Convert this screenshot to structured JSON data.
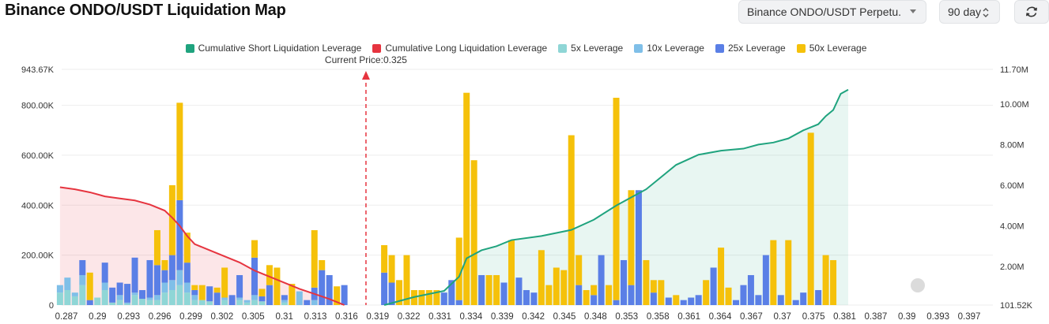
{
  "header": {
    "title": "Binance ONDO/USDT Liquidation Map",
    "pair_select": "Binance ONDO/USDT Perpetu...",
    "range_select": "90 day"
  },
  "colors": {
    "short": "#1fa37e",
    "long": "#e6343f",
    "lev5": "#8fd6d6",
    "lev10": "#7fbfe8",
    "lev25": "#5a7fe6",
    "lev50": "#f5c10a"
  },
  "chart_data": {
    "type": "bar",
    "title": "",
    "current_price_label": "Current Price:0.325",
    "current_price": 0.325,
    "legend": [
      {
        "name": "Cumulative Short Liquidation Leverage",
        "color": "#1fa37e"
      },
      {
        "name": "Cumulative Long Liquidation Leverage",
        "color": "#e6343f"
      },
      {
        "name": "5x Leverage",
        "color": "#8fd6d6"
      },
      {
        "name": "10x Leverage",
        "color": "#7fbfe8"
      },
      {
        "name": "25x Leverage",
        "color": "#5a7fe6"
      },
      {
        "name": "50x Leverage",
        "color": "#f5c10a"
      }
    ],
    "y_left": {
      "min": 0,
      "max": 943670,
      "ticks": [
        {
          "v": 0,
          "label": "0"
        },
        {
          "v": 200000,
          "label": "200.00K"
        },
        {
          "v": 400000,
          "label": "400.00K"
        },
        {
          "v": 600000,
          "label": "600.00K"
        },
        {
          "v": 800000,
          "label": "800.00K"
        },
        {
          "v": 943670,
          "label": "943.67K"
        }
      ]
    },
    "y_right": {
      "min": 101520,
      "max": 11700000,
      "ticks": [
        {
          "v": 101520,
          "label": "101.52K"
        },
        {
          "v": 2000000,
          "label": "2.00M"
        },
        {
          "v": 4000000,
          "label": "4.00M"
        },
        {
          "v": 6000000,
          "label": "6.00M"
        },
        {
          "v": 8000000,
          "label": "8.00M"
        },
        {
          "v": 10000000,
          "label": "10.00M"
        },
        {
          "v": 11700000,
          "label": "11.70M"
        }
      ]
    },
    "x_tick_labels": [
      "0.287",
      "0.29",
      "0.293",
      "0.296",
      "0.299",
      "0.302",
      "0.305",
      "0.31",
      "0.313",
      "0.316",
      "0.319",
      "0.322",
      "0.331",
      "0.334",
      "0.339",
      "0.342",
      "0.345",
      "0.348",
      "0.353",
      "0.358",
      "0.361",
      "0.364",
      "0.367",
      "0.37",
      "0.375",
      "0.381",
      "0.387",
      "0.39",
      "0.393",
      "0.397"
    ],
    "x_range": [
      0.287,
      0.399
    ],
    "bars": {
      "long_side": [
        {
          "x": 0.2868,
          "a": 50000,
          "b": 30000,
          "c": 0,
          "d": 0
        },
        {
          "x": 0.2877,
          "a": 60000,
          "b": 50000,
          "c": 0,
          "d": 0
        },
        {
          "x": 0.2886,
          "a": 35000,
          "b": 15000,
          "c": 0,
          "d": 0
        },
        {
          "x": 0.2895,
          "a": 80000,
          "b": 40000,
          "c": 60000,
          "d": 0
        },
        {
          "x": 0.2904,
          "a": 0,
          "b": 0,
          "c": 20000,
          "d": 110000
        },
        {
          "x": 0.2913,
          "a": 30000,
          "b": 0,
          "c": 0,
          "d": 0
        },
        {
          "x": 0.2922,
          "a": 60000,
          "b": 30000,
          "c": 80000,
          "d": 0
        },
        {
          "x": 0.2931,
          "a": 10000,
          "b": 0,
          "c": 60000,
          "d": 0
        },
        {
          "x": 0.294,
          "a": 20000,
          "b": 20000,
          "c": 50000,
          "d": 0
        },
        {
          "x": 0.2949,
          "a": 5000,
          "b": 5000,
          "c": 75000,
          "d": 0
        },
        {
          "x": 0.2958,
          "a": 40000,
          "b": 10000,
          "c": 140000,
          "d": 0
        },
        {
          "x": 0.2967,
          "a": 25000,
          "b": 0,
          "c": 35000,
          "d": 0
        },
        {
          "x": 0.2976,
          "a": 20000,
          "b": 10000,
          "c": 150000,
          "d": 0
        },
        {
          "x": 0.2985,
          "a": 20000,
          "b": 20000,
          "c": 120000,
          "d": 140000
        },
        {
          "x": 0.2994,
          "a": 50000,
          "b": 40000,
          "c": 50000,
          "d": 40000
        },
        {
          "x": 0.3003,
          "a": 60000,
          "b": 40000,
          "c": 100000,
          "d": 280000
        },
        {
          "x": 0.3012,
          "a": 80000,
          "b": 60000,
          "c": 280000,
          "d": 390000
        },
        {
          "x": 0.3021,
          "a": 50000,
          "b": 40000,
          "c": 80000,
          "d": 120000
        },
        {
          "x": 0.303,
          "a": 20000,
          "b": 20000,
          "c": 20000,
          "d": 20000
        },
        {
          "x": 0.3039,
          "a": 20000,
          "b": 0,
          "c": 0,
          "d": 60000
        },
        {
          "x": 0.3048,
          "a": 15000,
          "b": 0,
          "c": 60000,
          "d": 0
        },
        {
          "x": 0.3057,
          "a": 0,
          "b": 0,
          "c": 50000,
          "d": 20000
        },
        {
          "x": 0.3066,
          "a": 20000,
          "b": 10000,
          "c": 0,
          "d": 120000
        },
        {
          "x": 0.3075,
          "a": 0,
          "b": 0,
          "c": 40000,
          "d": 0
        },
        {
          "x": 0.3084,
          "a": 20000,
          "b": 10000,
          "c": 90000,
          "d": 0
        },
        {
          "x": 0.3093,
          "a": 10000,
          "b": 10000,
          "c": 0,
          "d": 0
        },
        {
          "x": 0.3102,
          "a": 20000,
          "b": 20000,
          "c": 150000,
          "d": 70000
        },
        {
          "x": 0.3111,
          "a": 15000,
          "b": 0,
          "c": 20000,
          "d": 30000
        },
        {
          "x": 0.312,
          "a": 0,
          "b": 0,
          "c": 80000,
          "d": 80000
        },
        {
          "x": 0.3129,
          "a": 0,
          "b": 0,
          "c": 0,
          "d": 150000
        },
        {
          "x": 0.3138,
          "a": 10000,
          "b": 10000,
          "c": 20000,
          "d": 0
        },
        {
          "x": 0.3147,
          "a": 0,
          "b": 0,
          "c": 0,
          "d": 85000
        },
        {
          "x": 0.3156,
          "a": 0,
          "b": 55000,
          "c": 0,
          "d": 0
        },
        {
          "x": 0.3165,
          "a": 0,
          "b": 0,
          "c": 20000,
          "d": 0
        },
        {
          "x": 0.3174,
          "a": 0,
          "b": 20000,
          "c": 50000,
          "d": 230000
        },
        {
          "x": 0.3183,
          "a": 0,
          "b": 0,
          "c": 140000,
          "d": 40000
        },
        {
          "x": 0.3192,
          "a": 0,
          "b": 0,
          "c": 120000,
          "d": 0
        },
        {
          "x": 0.3201,
          "a": 0,
          "b": 0,
          "c": 0,
          "d": 75000
        },
        {
          "x": 0.321,
          "a": 0,
          "b": 0,
          "c": 80000,
          "d": 0
        }
      ],
      "short_side": [
        {
          "x": 0.3258,
          "a": 0,
          "b": 0,
          "c": 130000,
          "d": 110000
        },
        {
          "x": 0.3267,
          "a": 0,
          "b": 0,
          "c": 90000,
          "d": 110000
        },
        {
          "x": 0.3276,
          "a": 0,
          "b": 0,
          "c": 0,
          "d": 100000
        },
        {
          "x": 0.3285,
          "a": 0,
          "b": 0,
          "c": 0,
          "d": 200000
        },
        {
          "x": 0.3294,
          "a": 0,
          "b": 0,
          "c": 0,
          "d": 60000
        },
        {
          "x": 0.3303,
          "a": 0,
          "b": 0,
          "c": 0,
          "d": 60000
        },
        {
          "x": 0.3312,
          "a": 0,
          "b": 0,
          "c": 0,
          "d": 60000
        },
        {
          "x": 0.3321,
          "a": 0,
          "b": 0,
          "c": 0,
          "d": 60000
        },
        {
          "x": 0.333,
          "a": 0,
          "b": 0,
          "c": 50000,
          "d": 0
        },
        {
          "x": 0.3339,
          "a": 0,
          "b": 0,
          "c": 100000,
          "d": 0
        },
        {
          "x": 0.3348,
          "a": 0,
          "b": 0,
          "c": 20000,
          "d": 250000
        },
        {
          "x": 0.3357,
          "a": 0,
          "b": 0,
          "c": 0,
          "d": 850000
        },
        {
          "x": 0.3366,
          "a": 0,
          "b": 0,
          "c": 0,
          "d": 580000
        },
        {
          "x": 0.3375,
          "a": 0,
          "b": 0,
          "c": 120000,
          "d": 0
        },
        {
          "x": 0.3384,
          "a": 0,
          "b": 0,
          "c": 0,
          "d": 120000
        },
        {
          "x": 0.3393,
          "a": 0,
          "b": 0,
          "c": 0,
          "d": 120000
        },
        {
          "x": 0.3402,
          "a": 0,
          "b": 0,
          "c": 90000,
          "d": 0
        },
        {
          "x": 0.3411,
          "a": 0,
          "b": 0,
          "c": 0,
          "d": 260000
        },
        {
          "x": 0.342,
          "a": 0,
          "b": 0,
          "c": 110000,
          "d": 0
        },
        {
          "x": 0.3429,
          "a": 0,
          "b": 0,
          "c": 60000,
          "d": 0
        },
        {
          "x": 0.3438,
          "a": 0,
          "b": 0,
          "c": 50000,
          "d": 0
        },
        {
          "x": 0.3447,
          "a": 0,
          "b": 0,
          "c": 0,
          "d": 220000
        },
        {
          "x": 0.3456,
          "a": 0,
          "b": 0,
          "c": 0,
          "d": 80000
        },
        {
          "x": 0.3465,
          "a": 0,
          "b": 0,
          "c": 0,
          "d": 150000
        },
        {
          "x": 0.3474,
          "a": 0,
          "b": 0,
          "c": 0,
          "d": 140000
        },
        {
          "x": 0.3483,
          "a": 0,
          "b": 0,
          "c": 0,
          "d": 680000
        },
        {
          "x": 0.3492,
          "a": 0,
          "b": 0,
          "c": 80000,
          "d": 120000
        },
        {
          "x": 0.3501,
          "a": 0,
          "b": 0,
          "c": 0,
          "d": 60000
        },
        {
          "x": 0.351,
          "a": 0,
          "b": 0,
          "c": 40000,
          "d": 40000
        },
        {
          "x": 0.3519,
          "a": 0,
          "b": 0,
          "c": 200000,
          "d": 0
        },
        {
          "x": 0.3528,
          "a": 0,
          "b": 0,
          "c": 0,
          "d": 80000
        },
        {
          "x": 0.3537,
          "a": 0,
          "b": 0,
          "c": 20000,
          "d": 810000
        },
        {
          "x": 0.3546,
          "a": 0,
          "b": 0,
          "c": 180000,
          "d": 0
        },
        {
          "x": 0.3555,
          "a": 0,
          "b": 0,
          "c": 80000,
          "d": 380000
        },
        {
          "x": 0.3564,
          "a": 0,
          "b": 0,
          "c": 460000,
          "d": 0
        },
        {
          "x": 0.3573,
          "a": 0,
          "b": 0,
          "c": 0,
          "d": 180000
        },
        {
          "x": 0.3582,
          "a": 0,
          "b": 0,
          "c": 50000,
          "d": 50000
        },
        {
          "x": 0.3591,
          "a": 0,
          "b": 0,
          "c": 0,
          "d": 100000
        },
        {
          "x": 0.36,
          "a": 0,
          "b": 0,
          "c": 30000,
          "d": 0
        },
        {
          "x": 0.3609,
          "a": 0,
          "b": 0,
          "c": 0,
          "d": 40000
        },
        {
          "x": 0.3618,
          "a": 0,
          "b": 0,
          "c": 20000,
          "d": 0
        },
        {
          "x": 0.3627,
          "a": 0,
          "b": 0,
          "c": 30000,
          "d": 0
        },
        {
          "x": 0.3636,
          "a": 0,
          "b": 0,
          "c": 40000,
          "d": 0
        },
        {
          "x": 0.3645,
          "a": 0,
          "b": 0,
          "c": 0,
          "d": 100000
        },
        {
          "x": 0.3654,
          "a": 0,
          "b": 0,
          "c": 150000,
          "d": 0
        },
        {
          "x": 0.3663,
          "a": 0,
          "b": 0,
          "c": 0,
          "d": 230000
        },
        {
          "x": 0.3672,
          "a": 0,
          "b": 0,
          "c": 0,
          "d": 70000
        },
        {
          "x": 0.3681,
          "a": 0,
          "b": 0,
          "c": 20000,
          "d": 0
        },
        {
          "x": 0.369,
          "a": 0,
          "b": 0,
          "c": 80000,
          "d": 0
        },
        {
          "x": 0.3699,
          "a": 0,
          "b": 0,
          "c": 120000,
          "d": 0
        },
        {
          "x": 0.3708,
          "a": 0,
          "b": 0,
          "c": 40000,
          "d": 0
        },
        {
          "x": 0.3717,
          "a": 0,
          "b": 0,
          "c": 200000,
          "d": 0
        },
        {
          "x": 0.3726,
          "a": 0,
          "b": 0,
          "c": 0,
          "d": 260000
        },
        {
          "x": 0.3735,
          "a": 0,
          "b": 0,
          "c": 40000,
          "d": 0
        },
        {
          "x": 0.3744,
          "a": 0,
          "b": 0,
          "c": 0,
          "d": 260000
        },
        {
          "x": 0.3753,
          "a": 0,
          "b": 0,
          "c": 20000,
          "d": 0
        },
        {
          "x": 0.3762,
          "a": 0,
          "b": 0,
          "c": 50000,
          "d": 0
        },
        {
          "x": 0.3771,
          "a": 0,
          "b": 0,
          "c": 0,
          "d": 690000
        },
        {
          "x": 0.378,
          "a": 0,
          "b": 0,
          "c": 60000,
          "d": 0
        },
        {
          "x": 0.3789,
          "a": 0,
          "b": 0,
          "c": 0,
          "d": 200000
        },
        {
          "x": 0.3798,
          "a": 0,
          "b": 0,
          "c": 0,
          "d": 180000
        }
      ]
    },
    "cumulative_long": [
      [
        0.2868,
        5900000
      ],
      [
        0.2886,
        5800000
      ],
      [
        0.2904,
        5650000
      ],
      [
        0.2922,
        5450000
      ],
      [
        0.294,
        5350000
      ],
      [
        0.2958,
        5250000
      ],
      [
        0.2976,
        5050000
      ],
      [
        0.2994,
        4750000
      ],
      [
        0.3003,
        4400000
      ],
      [
        0.3012,
        4000000
      ],
      [
        0.3021,
        3500000
      ],
      [
        0.303,
        3100000
      ],
      [
        0.3048,
        2800000
      ],
      [
        0.3066,
        2500000
      ],
      [
        0.3084,
        2200000
      ],
      [
        0.3102,
        1800000
      ],
      [
        0.312,
        1500000
      ],
      [
        0.3138,
        1200000
      ],
      [
        0.3156,
        900000
      ],
      [
        0.3174,
        650000
      ],
      [
        0.3192,
        400000
      ],
      [
        0.321,
        101520
      ]
    ],
    "cumulative_short": [
      [
        0.3258,
        101520
      ],
      [
        0.3276,
        300000
      ],
      [
        0.3294,
        500000
      ],
      [
        0.3312,
        650000
      ],
      [
        0.333,
        800000
      ],
      [
        0.3348,
        1500000
      ],
      [
        0.3357,
        2400000
      ],
      [
        0.3375,
        2800000
      ],
      [
        0.3393,
        3000000
      ],
      [
        0.3411,
        3300000
      ],
      [
        0.3447,
        3500000
      ],
      [
        0.3483,
        3800000
      ],
      [
        0.351,
        4300000
      ],
      [
        0.3537,
        5000000
      ],
      [
        0.3555,
        5400000
      ],
      [
        0.3573,
        5800000
      ],
      [
        0.3591,
        6400000
      ],
      [
        0.3609,
        7000000
      ],
      [
        0.3636,
        7500000
      ],
      [
        0.3663,
        7700000
      ],
      [
        0.369,
        7800000
      ],
      [
        0.3708,
        8000000
      ],
      [
        0.3726,
        8100000
      ],
      [
        0.3744,
        8300000
      ],
      [
        0.3762,
        8700000
      ],
      [
        0.378,
        9000000
      ],
      [
        0.3789,
        9400000
      ],
      [
        0.3798,
        9700000
      ],
      [
        0.3807,
        10500000
      ],
      [
        0.3816,
        10700000
      ]
    ]
  }
}
